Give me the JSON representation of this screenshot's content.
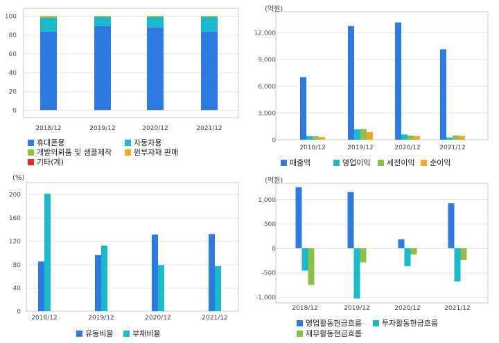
{
  "chart_data": [
    {
      "type": "bar",
      "stacked": true,
      "categories": [
        "2018/12",
        "2019/12",
        "2020/12",
        "2021/12"
      ],
      "ylim": [
        0,
        100
      ],
      "yticks": [
        "0",
        "20",
        "40",
        "60",
        "80",
        "100"
      ],
      "unit": "",
      "series": [
        {
          "name": "휴대폰용",
          "color": "#2f7ae0",
          "values": [
            83,
            89,
            88,
            83
          ]
        },
        {
          "name": "자동차용",
          "color": "#1bb9c9",
          "values": [
            15,
            10,
            11,
            16
          ]
        },
        {
          "name": "개발의뢰품 및 샘플제작",
          "color": "#8cc04a",
          "values": [
            1,
            0.5,
            0.5,
            0.5
          ]
        },
        {
          "name": "원부자재 판매",
          "color": "#f5a623",
          "values": [
            1,
            0.5,
            0.5,
            0.5
          ]
        },
        {
          "name": "기타(계)",
          "color": "#e02d2d",
          "values": [
            0,
            0,
            0,
            0
          ]
        }
      ]
    },
    {
      "type": "bar",
      "categories": [
        "2018/12",
        "2019/12",
        "2020/12",
        "2021/12"
      ],
      "ylim": [
        0,
        14000
      ],
      "yticks": [
        "0",
        "3,000",
        "6,000",
        "9,000",
        "12,000"
      ],
      "unit": "(억원)",
      "series": [
        {
          "name": "매출액",
          "color": "#2f7ae0",
          "values": [
            7000,
            12700,
            13100,
            10100
          ]
        },
        {
          "name": "영업이익",
          "color": "#1bb9c9",
          "values": [
            400,
            1150,
            580,
            250
          ]
        },
        {
          "name": "세전이익",
          "color": "#8cc04a",
          "values": [
            380,
            1200,
            460,
            480
          ]
        },
        {
          "name": "순이익",
          "color": "#f5a623",
          "values": [
            300,
            850,
            400,
            420
          ]
        }
      ]
    },
    {
      "type": "bar",
      "categories": [
        "2018/12",
        "2019/12",
        "2020/12",
        "2021/12"
      ],
      "ylim": [
        0,
        220
      ],
      "yticks": [
        "0",
        "40",
        "80",
        "120",
        "160",
        "200"
      ],
      "unit": "(%)",
      "series": [
        {
          "name": "유동비율",
          "color": "#2f7ae0",
          "values": [
            85,
            96,
            131,
            132
          ]
        },
        {
          "name": "부채비율",
          "color": "#1bb9c9",
          "values": [
            201,
            112,
            79,
            77
          ]
        }
      ]
    },
    {
      "type": "bar",
      "categories": [
        "2018/12",
        "2019/12",
        "2020/12",
        "2021/12"
      ],
      "ylim": [
        -1100,
        1300
      ],
      "yticks": [
        "-1,000",
        "-500",
        "0",
        "500",
        "1,000"
      ],
      "unit": "(억원)",
      "series": [
        {
          "name": "영업활동현금흐름",
          "color": "#2f7ae0",
          "values": [
            1250,
            1150,
            180,
            920
          ]
        },
        {
          "name": "투자활동현금흐름",
          "color": "#1bb9c9",
          "values": [
            -460,
            -1030,
            -370,
            -680
          ]
        },
        {
          "name": "재무활동현금흐름",
          "color": "#8cc04a",
          "values": [
            -750,
            -290,
            -130,
            -240
          ]
        }
      ]
    }
  ]
}
